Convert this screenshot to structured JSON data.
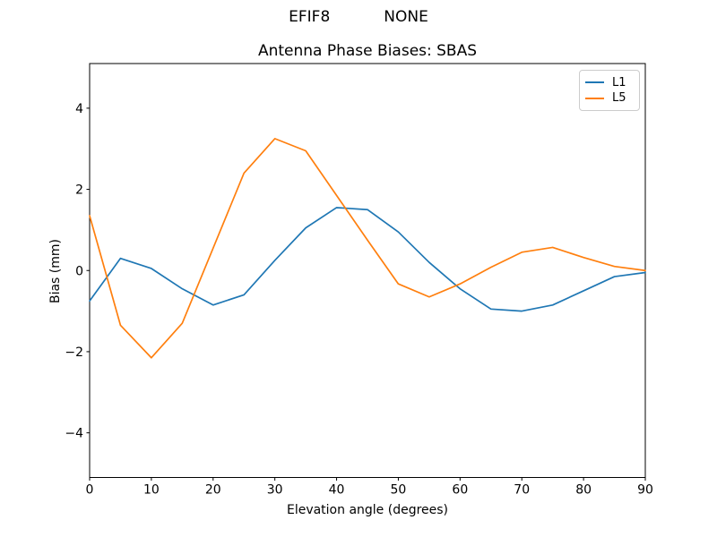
{
  "header": {
    "station": "EFIF8",
    "mode": "NONE"
  },
  "chart": {
    "title": "Antenna Phase Biases: SBAS",
    "xlabel": "Elevation angle (degrees)",
    "ylabel": "Bias (mm)"
  },
  "legend": {
    "items": [
      {
        "label": "L1",
        "color": "#1f77b4"
      },
      {
        "label": "L5",
        "color": "#ff7f0e"
      }
    ]
  },
  "chart_data": {
    "type": "line",
    "suptitle": "EFIF8          NONE",
    "title": "Antenna Phase Biases: SBAS",
    "xlabel": "Elevation angle (degrees)",
    "ylabel": "Bias (mm)",
    "x": [
      0,
      5,
      10,
      15,
      20,
      25,
      30,
      35,
      40,
      45,
      50,
      55,
      60,
      65,
      70,
      75,
      80,
      85,
      90
    ],
    "series": [
      {
        "name": "L1",
        "color": "#1f77b4",
        "values": [
          -0.75,
          0.3,
          0.05,
          -0.45,
          -0.85,
          -0.6,
          0.25,
          1.05,
          1.55,
          1.5,
          0.95,
          0.2,
          -0.45,
          -0.95,
          -1.0,
          -0.85,
          -0.5,
          -0.15,
          -0.05
        ]
      },
      {
        "name": "L5",
        "color": "#ff7f0e",
        "values": [
          1.35,
          -1.35,
          -2.15,
          -1.3,
          0.55,
          2.4,
          3.25,
          2.95,
          1.85,
          0.75,
          -0.33,
          -0.65,
          -0.33,
          0.08,
          0.45,
          0.57,
          0.32,
          0.1,
          0.0
        ]
      }
    ],
    "xlim": [
      0,
      90
    ],
    "ylim": [
      -5.1,
      5.1
    ],
    "xticks": [
      0,
      10,
      20,
      30,
      40,
      50,
      60,
      70,
      80,
      90
    ],
    "yticks": [
      -4,
      -2,
      0,
      2,
      4
    ],
    "grid": false,
    "legend_position": "upper right"
  }
}
